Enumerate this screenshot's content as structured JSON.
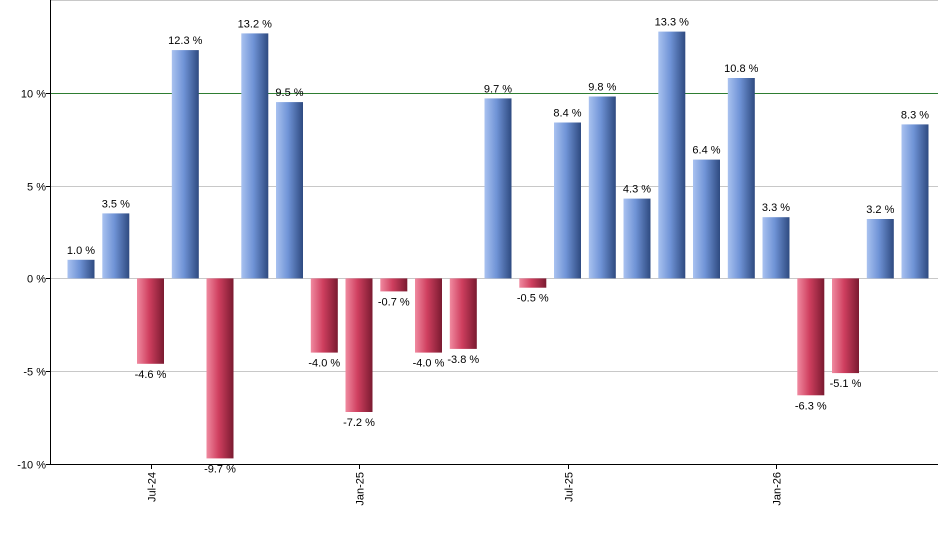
{
  "chart_data": {
    "type": "bar",
    "categories": [
      "2024-05",
      "2024-06",
      "2024-07",
      "2024-08",
      "2024-09",
      "2024-10",
      "2024-11",
      "2024-12",
      "2025-01",
      "2025-02",
      "2025-03",
      "2025-04",
      "2025-05",
      "2025-06",
      "2025-07",
      "2025-08",
      "2025-09",
      "2025-10",
      "2025-11",
      "2025-12",
      "2026-01",
      "2026-02",
      "2026-03",
      "2026-04",
      "2026-05"
    ],
    "values": [
      1.0,
      3.5,
      -4.6,
      12.3,
      -9.7,
      13.2,
      9.5,
      -4.0,
      -7.2,
      -0.7,
      -4.0,
      -3.8,
      9.7,
      -0.5,
      8.4,
      9.8,
      4.3,
      13.3,
      6.4,
      10.8,
      3.3,
      -6.3,
      -5.1,
      3.2,
      8.3
    ],
    "data_labels": [
      "1.0 %",
      "3.5 %",
      "-4.6 %",
      "12.3 %",
      "-9.7 %",
      "13.2 %",
      "9.5 %",
      "-4.0 %",
      "-7.2 %",
      "-0.7 %",
      "-4.0 %",
      "-3.8 %",
      "9.7 %",
      "-0.5 %",
      "8.4 %",
      "9.8 %",
      "4.3 %",
      "13.3 %",
      "6.4 %",
      "10.8 %",
      "3.3 %",
      "-6.3 %",
      "-5.1 %",
      "3.2 %",
      "8.3 %"
    ],
    "ylim": [
      -10,
      15
    ],
    "y_ticks": [
      -10,
      -5,
      0,
      5,
      10
    ],
    "y_tick_labels": [
      "-10 %",
      "-5 %",
      "0 %",
      "5 %",
      "10 %"
    ],
    "x_ticks": [
      {
        "label": "Jul-24",
        "index": 2
      },
      {
        "label": "Jan-25",
        "index": 8
      },
      {
        "label": "Jul-25",
        "index": 14
      },
      {
        "label": "Jan-26",
        "index": 20
      }
    ],
    "reference_line": 10,
    "grid": true,
    "colors": {
      "positive": "#6f93d6",
      "negative": "#c43a5a",
      "reference_line": "#2e7d32",
      "grid": "#c8c8c8",
      "axis": "#000000"
    }
  }
}
